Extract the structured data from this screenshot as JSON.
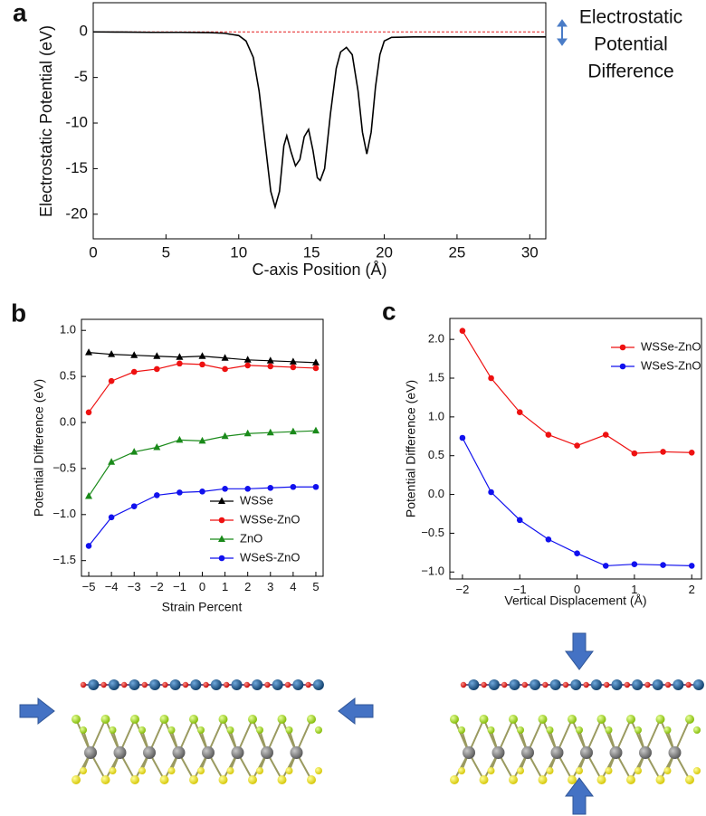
{
  "chart_data": [
    {
      "type": "line",
      "panel_label": "a",
      "xlabel": "C-axis Position (Å)",
      "ylabel": "Electrostatic Potential (eV)",
      "x": [
        0,
        2,
        4,
        6,
        8,
        9,
        10,
        10.5,
        11,
        11.4,
        11.8,
        12.2,
        12.5,
        12.8,
        13.1,
        13.3,
        13.6,
        13.9,
        14.2,
        14.5,
        14.8,
        15.1,
        15.4,
        15.6,
        15.9,
        16.3,
        16.7,
        17.0,
        17.4,
        17.8,
        18.2,
        18.5,
        18.8,
        19.1,
        19.4,
        19.7,
        20.0,
        20.5,
        22,
        25,
        28,
        31.1
      ],
      "values": [
        0,
        -0.02,
        -0.05,
        -0.05,
        -0.08,
        -0.15,
        -0.4,
        -1.0,
        -2.8,
        -6.5,
        -12,
        -17.5,
        -19.2,
        -17.5,
        -12.5,
        -11.4,
        -13.2,
        -14.7,
        -14,
        -11.5,
        -10.7,
        -13,
        -16,
        -16.3,
        -15,
        -9,
        -4,
        -2.2,
        -1.7,
        -2.5,
        -6.5,
        -11,
        -13.4,
        -11,
        -6,
        -2.5,
        -1.0,
        -0.6,
        -0.55,
        -0.55,
        -0.55,
        -0.55
      ],
      "color": "#000000",
      "reference_line": 0,
      "reference_color": "#e41a1c",
      "xlim": [
        0,
        31.1
      ],
      "ylim": [
        -22.7,
        3.2
      ],
      "xticks": [
        0,
        5,
        10,
        15,
        20,
        25,
        30
      ],
      "yticks": [
        0,
        -5,
        -10,
        -15,
        -20
      ],
      "annotation": [
        "Electrostatic",
        "Potential",
        "Difference"
      ]
    },
    {
      "type": "line",
      "panel_label": "b",
      "xlabel": "Strain Percent",
      "ylabel": "Potential Difference (eV)",
      "x": [
        -5,
        -4,
        -3,
        -2,
        -1,
        0,
        1,
        2,
        3,
        4,
        5
      ],
      "series": [
        {
          "name": "WSSe",
          "color": "#000000",
          "marker": "triangle",
          "values": [
            0.76,
            0.74,
            0.73,
            0.72,
            0.71,
            0.72,
            0.7,
            0.68,
            0.67,
            0.66,
            0.65
          ]
        },
        {
          "name": "WSSe-ZnO",
          "color": "#ee1111",
          "marker": "circle",
          "values": [
            0.11,
            0.45,
            0.55,
            0.58,
            0.64,
            0.63,
            0.58,
            0.62,
            0.61,
            0.6,
            0.59
          ]
        },
        {
          "name": "ZnO",
          "color": "#1a8a1a",
          "marker": "triangle",
          "values": [
            -0.8,
            -0.43,
            -0.32,
            -0.27,
            -0.19,
            -0.2,
            -0.15,
            -0.12,
            -0.11,
            -0.1,
            -0.09
          ]
        },
        {
          "name": "WSeS-ZnO",
          "color": "#1111ee",
          "marker": "circle",
          "values": [
            -1.34,
            -1.03,
            -0.91,
            -0.79,
            -0.76,
            -0.75,
            -0.72,
            -0.72,
            -0.71,
            -0.7,
            -0.7
          ]
        }
      ],
      "legend": "lower right",
      "xlim": [
        -5.32,
        5.32
      ],
      "ylim": [
        -1.67,
        1.12
      ],
      "xticks": [
        {
          "value": -5,
          "label": "−5"
        },
        {
          "value": -4,
          "label": "−4"
        },
        {
          "value": -3,
          "label": "−3"
        },
        {
          "value": -2,
          "label": "−2"
        },
        {
          "value": -1,
          "label": "−1"
        },
        0,
        1,
        2,
        3,
        4,
        5
      ],
      "yticks": [
        {
          "value": 1,
          "label": "1.0"
        },
        {
          "value": 0.5,
          "label": "0.5"
        },
        {
          "value": 0,
          "label": "0.0"
        },
        {
          "value": -0.5,
          "label": "−0.5"
        },
        {
          "value": -1,
          "label": "−1.0"
        },
        {
          "value": -1.5,
          "label": "−1.5"
        }
      ]
    },
    {
      "type": "line",
      "panel_label": "c",
      "xlabel": "Vertical Displacement (Å)",
      "ylabel": "Potential Difference (eV)",
      "x": [
        -2,
        -1.5,
        -1,
        -0.5,
        0,
        0.5,
        1,
        1.5,
        2
      ],
      "series": [
        {
          "name": "WSSe-ZnO",
          "color": "#ee1111",
          "marker": "circle",
          "values": [
            2.11,
            1.5,
            1.06,
            0.77,
            0.63,
            0.77,
            0.53,
            0.55,
            0.54
          ]
        },
        {
          "name": "WSeS-ZnO",
          "color": "#1111ee",
          "marker": "circle",
          "values": [
            0.73,
            0.03,
            -0.33,
            -0.58,
            -0.76,
            -0.92,
            -0.9,
            -0.91,
            -0.92
          ]
        }
      ],
      "legend": "upper right",
      "xlim": [
        -2.22,
        2.17
      ],
      "ylim": [
        -1.09,
        2.27
      ],
      "xticks": [
        {
          "value": -2,
          "label": "−2"
        },
        {
          "value": -1,
          "label": "−1"
        },
        0,
        1,
        2
      ],
      "yticks": [
        {
          "value": 2,
          "label": "2.0"
        },
        {
          "value": 1.5,
          "label": "1.5"
        },
        {
          "value": 1,
          "label": "1.0"
        },
        {
          "value": 0.5,
          "label": "0.5"
        },
        {
          "value": 0,
          "label": "0.0"
        },
        {
          "value": -0.5,
          "label": "−0.5"
        },
        {
          "value": -1,
          "label": "−1.0"
        }
      ]
    }
  ]
}
